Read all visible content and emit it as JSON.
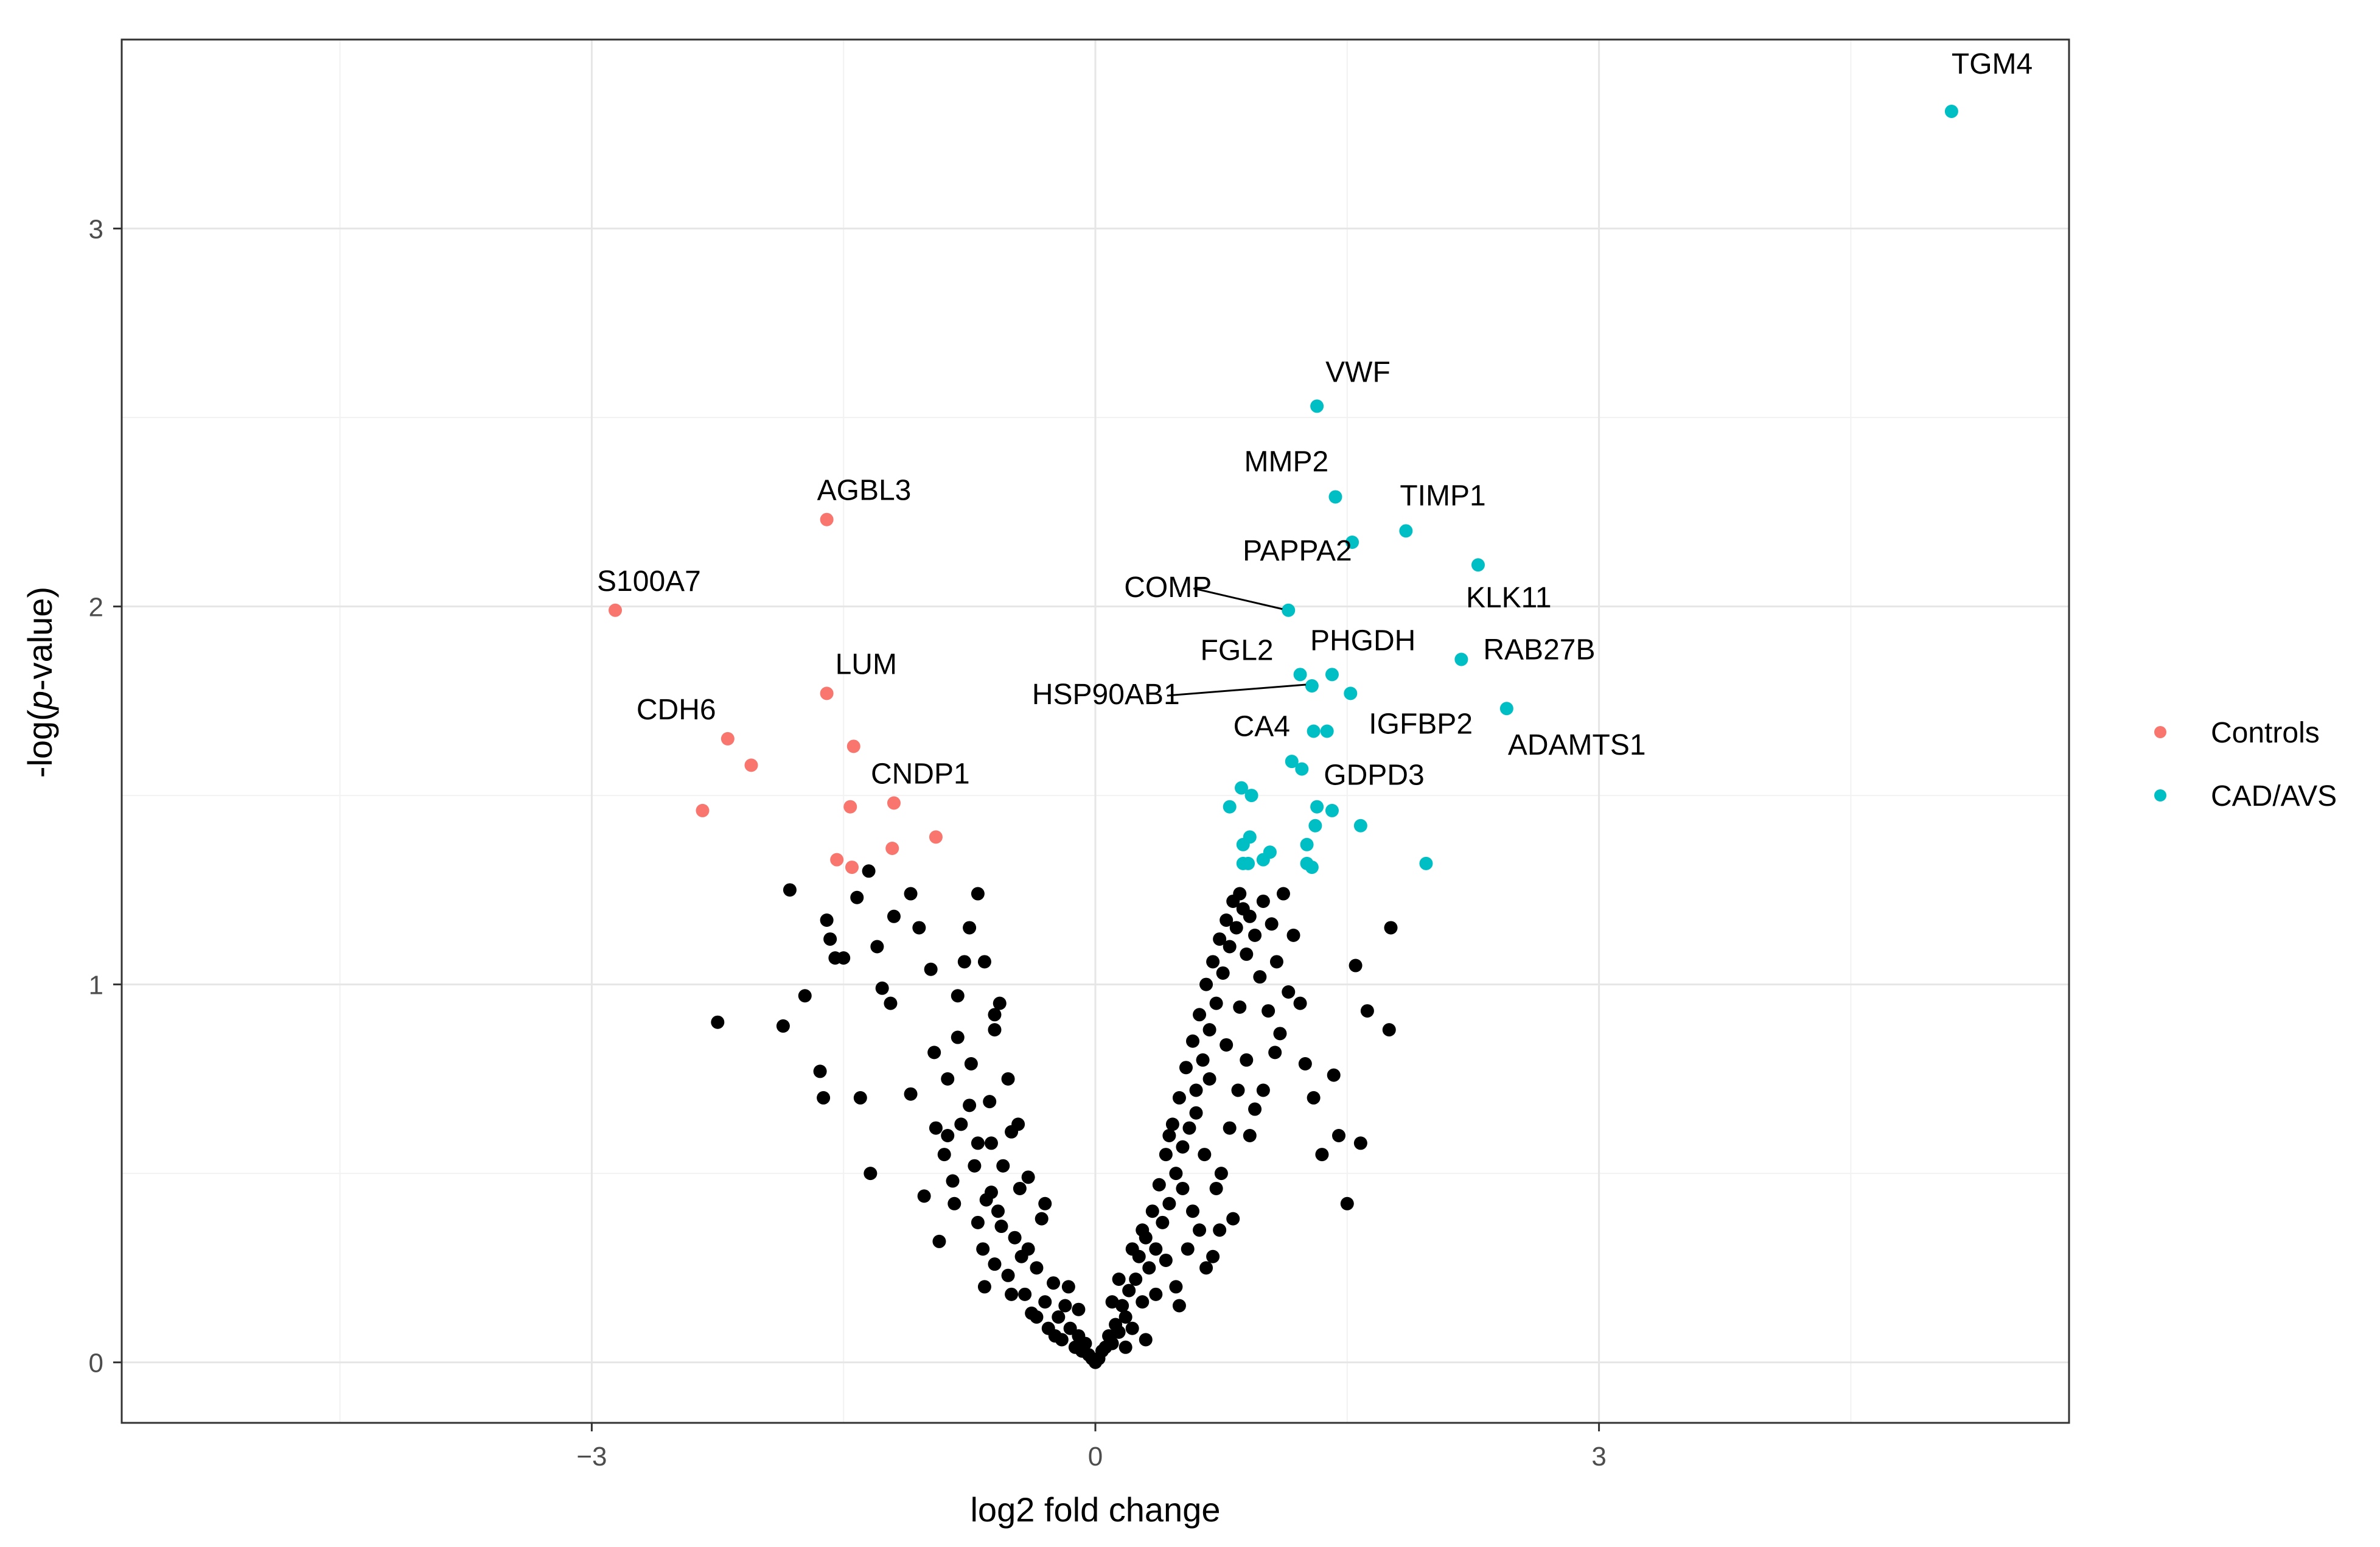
{
  "chart_data": {
    "type": "scatter",
    "xlabel": "log2 fold change",
    "ylabel": "-log(p-value)",
    "xlim": [
      -5.8,
      5.8
    ],
    "ylim": [
      -0.16,
      3.5
    ],
    "x_ticks": [
      -3,
      0,
      3
    ],
    "x_tick_labels": [
      "−3",
      "0",
      "3"
    ],
    "y_ticks": [
      0,
      1,
      2,
      3
    ],
    "y_tick_labels": [
      "0",
      "1",
      "2",
      "3"
    ],
    "grid": true,
    "legend_position": "right",
    "colors": {
      "Controls": "#F8766D",
      "CAD/AVS": "#00BFC4",
      "ns": "#000000",
      "grid_major": "#e6e6e6",
      "grid_minor": "#f2f2f2"
    },
    "series": [
      {
        "name": "Controls",
        "color": "#F8766D",
        "points": [
          [
            -2.86,
            1.99
          ],
          [
            -1.6,
            2.23
          ],
          [
            -1.6,
            1.77
          ],
          [
            -2.19,
            1.65
          ],
          [
            -2.05,
            1.58
          ],
          [
            -1.44,
            1.63
          ],
          [
            -2.34,
            1.46
          ],
          [
            -1.46,
            1.47
          ],
          [
            -1.2,
            1.48
          ],
          [
            -0.95,
            1.39
          ],
          [
            -1.54,
            1.33
          ],
          [
            -1.45,
            1.31
          ],
          [
            -1.21,
            1.36
          ]
        ]
      },
      {
        "name": "CAD/AVS",
        "color": "#00BFC4",
        "points": [
          [
            5.1,
            3.31
          ],
          [
            1.32,
            2.53
          ],
          [
            1.43,
            2.29
          ],
          [
            1.53,
            2.17
          ],
          [
            1.85,
            2.2
          ],
          [
            2.28,
            2.11
          ],
          [
            1.15,
            1.99
          ],
          [
            2.18,
            1.86
          ],
          [
            1.22,
            1.82
          ],
          [
            1.41,
            1.82
          ],
          [
            1.29,
            1.79
          ],
          [
            1.52,
            1.77
          ],
          [
            2.45,
            1.73
          ],
          [
            1.3,
            1.67
          ],
          [
            1.38,
            1.67
          ],
          [
            1.17,
            1.59
          ],
          [
            1.23,
            1.57
          ],
          [
            0.87,
            1.52
          ],
          [
            0.93,
            1.5
          ],
          [
            0.8,
            1.47
          ],
          [
            1.32,
            1.47
          ],
          [
            1.41,
            1.46
          ],
          [
            1.58,
            1.42
          ],
          [
            1.31,
            1.42
          ],
          [
            0.92,
            1.39
          ],
          [
            0.88,
            1.37
          ],
          [
            1.26,
            1.37
          ],
          [
            1.04,
            1.35
          ],
          [
            1.0,
            1.33
          ],
          [
            0.91,
            1.32
          ],
          [
            0.88,
            1.32
          ],
          [
            1.97,
            1.32
          ],
          [
            1.26,
            1.32
          ],
          [
            1.29,
            1.31
          ]
        ]
      }
    ],
    "ns_series": {
      "name": "",
      "color": "#000000",
      "points": [
        [
          -2.25,
          0.9
        ],
        [
          -1.82,
          1.25
        ],
        [
          -1.73,
          0.97
        ],
        [
          -1.86,
          0.89
        ],
        [
          -1.64,
          0.77
        ],
        [
          -1.62,
          0.7
        ],
        [
          -1.58,
          1.12
        ],
        [
          -1.55,
          1.07
        ],
        [
          -1.6,
          1.17
        ],
        [
          -1.5,
          1.07
        ],
        [
          -1.42,
          1.23
        ],
        [
          -1.35,
          1.3
        ],
        [
          -1.4,
          0.7
        ],
        [
          -1.34,
          0.5
        ],
        [
          -1.3,
          1.1
        ],
        [
          -1.27,
          0.99
        ],
        [
          -1.22,
          0.95
        ],
        [
          -1.2,
          1.18
        ],
        [
          -1.1,
          1.24
        ],
        [
          -1.05,
          1.15
        ],
        [
          -1.1,
          0.71
        ],
        [
          -0.98,
          1.04
        ],
        [
          -0.95,
          0.62
        ],
        [
          -1.02,
          0.44
        ],
        [
          -0.7,
          1.24
        ],
        [
          -0.6,
          0.88
        ],
        [
          -0.57,
          0.95
        ],
        [
          -0.63,
          0.69
        ],
        [
          -0.82,
          0.97
        ],
        [
          -0.78,
          1.06
        ],
        [
          -0.75,
          1.15
        ],
        [
          -0.88,
          0.75
        ],
        [
          -0.9,
          0.55
        ],
        [
          -0.85,
          0.48
        ],
        [
          -0.93,
          0.32
        ],
        [
          -0.8,
          0.63
        ],
        [
          -0.82,
          0.86
        ],
        [
          -0.74,
          0.79
        ],
        [
          -0.72,
          0.52
        ],
        [
          -0.7,
          0.37
        ],
        [
          -0.67,
          0.3
        ],
        [
          -0.65,
          0.43
        ],
        [
          -0.62,
          0.58
        ],
        [
          -0.6,
          0.26
        ],
        [
          -0.58,
          0.4
        ],
        [
          -0.55,
          0.52
        ],
        [
          -0.52,
          0.23
        ],
        [
          -0.5,
          0.61
        ],
        [
          -0.48,
          0.33
        ],
        [
          -0.45,
          0.46
        ],
        [
          -0.42,
          0.18
        ],
        [
          -0.4,
          0.3
        ],
        [
          -0.38,
          0.13
        ],
        [
          -0.35,
          0.25
        ],
        [
          -0.32,
          0.38
        ],
        [
          -0.3,
          0.16
        ],
        [
          -0.28,
          0.09
        ],
        [
          -0.25,
          0.21
        ],
        [
          -0.22,
          0.12
        ],
        [
          -0.2,
          0.06
        ],
        [
          -0.18,
          0.15
        ],
        [
          -0.15,
          0.09
        ],
        [
          -0.12,
          0.04
        ],
        [
          -0.1,
          0.07
        ],
        [
          -0.08,
          0.03
        ],
        [
          -0.06,
          0.05
        ],
        [
          -0.04,
          0.02
        ],
        [
          -0.02,
          0.01
        ],
        [
          0.0,
          0.0
        ],
        [
          0.02,
          0.01
        ],
        [
          0.04,
          0.03
        ],
        [
          0.06,
          0.04
        ],
        [
          0.08,
          0.07
        ],
        [
          0.1,
          0.05
        ],
        [
          0.12,
          0.1
        ],
        [
          0.14,
          0.08
        ],
        [
          0.16,
          0.15
        ],
        [
          0.18,
          0.12
        ],
        [
          0.2,
          0.19
        ],
        [
          0.22,
          0.09
        ],
        [
          0.24,
          0.22
        ],
        [
          0.26,
          0.28
        ],
        [
          0.28,
          0.16
        ],
        [
          0.3,
          0.33
        ],
        [
          0.32,
          0.25
        ],
        [
          0.34,
          0.4
        ],
        [
          0.36,
          0.3
        ],
        [
          0.38,
          0.47
        ],
        [
          0.4,
          0.37
        ],
        [
          0.42,
          0.55
        ],
        [
          0.44,
          0.42
        ],
        [
          0.46,
          0.63
        ],
        [
          0.48,
          0.5
        ],
        [
          0.5,
          0.7
        ],
        [
          0.52,
          0.57
        ],
        [
          0.54,
          0.78
        ],
        [
          0.56,
          0.62
        ],
        [
          0.58,
          0.85
        ],
        [
          0.6,
          0.72
        ],
        [
          0.62,
          0.92
        ],
        [
          0.64,
          0.8
        ],
        [
          0.66,
          1.0
        ],
        [
          0.68,
          0.88
        ],
        [
          0.7,
          1.06
        ],
        [
          0.72,
          0.95
        ],
        [
          0.74,
          1.12
        ],
        [
          0.76,
          1.03
        ],
        [
          0.78,
          1.17
        ],
        [
          0.8,
          1.1
        ],
        [
          0.82,
          1.22
        ],
        [
          0.84,
          1.15
        ],
        [
          0.86,
          1.24
        ],
        [
          0.88,
          1.2
        ],
        [
          0.9,
          1.08
        ],
        [
          0.92,
          1.18
        ],
        [
          0.95,
          1.13
        ],
        [
          0.98,
          1.02
        ],
        [
          1.0,
          1.22
        ],
        [
          1.03,
          0.93
        ],
        [
          1.05,
          1.16
        ],
        [
          1.08,
          1.06
        ],
        [
          1.1,
          0.87
        ],
        [
          1.12,
          1.24
        ],
        [
          1.15,
          0.98
        ],
        [
          1.18,
          1.13
        ],
        [
          1.22,
          0.95
        ],
        [
          1.25,
          0.79
        ],
        [
          1.3,
          0.7
        ],
        [
          1.35,
          0.55
        ],
        [
          1.45,
          0.6
        ],
        [
          1.5,
          0.42
        ],
        [
          1.42,
          0.76
        ],
        [
          1.55,
          1.05
        ],
        [
          1.58,
          0.58
        ],
        [
          1.62,
          0.93
        ],
        [
          1.75,
          0.88
        ],
        [
          1.76,
          1.15
        ],
        [
          0.55,
          0.3
        ],
        [
          0.62,
          0.35
        ],
        [
          0.48,
          0.2
        ],
        [
          0.7,
          0.28
        ],
        [
          0.65,
          0.55
        ],
        [
          0.58,
          0.4
        ],
        [
          0.75,
          0.5
        ],
        [
          0.8,
          0.62
        ],
        [
          0.85,
          0.72
        ],
        [
          0.9,
          0.8
        ],
        [
          0.95,
          0.67
        ],
        [
          0.72,
          0.46
        ],
        [
          0.66,
          0.25
        ],
        [
          0.5,
          0.15
        ],
        [
          0.42,
          0.27
        ],
        [
          0.36,
          0.18
        ],
        [
          -0.3,
          0.42
        ],
        [
          -0.35,
          0.12
        ],
        [
          -0.44,
          0.28
        ],
        [
          -0.5,
          0.18
        ],
        [
          -0.56,
          0.36
        ],
        [
          -0.62,
          0.45
        ],
        [
          -0.66,
          0.2
        ],
        [
          -0.7,
          0.58
        ],
        [
          -0.75,
          0.68
        ],
        [
          -0.84,
          0.42
        ],
        [
          -0.88,
          0.6
        ],
        [
          -0.96,
          0.82
        ],
        [
          -0.6,
          0.92
        ],
        [
          -0.66,
          1.06
        ],
        [
          -0.52,
          0.75
        ],
        [
          -0.46,
          0.63
        ],
        [
          -0.4,
          0.49
        ],
        [
          0.3,
          0.06
        ],
        [
          0.28,
          0.35
        ],
        [
          0.44,
          0.6
        ],
        [
          0.52,
          0.46
        ],
        [
          0.6,
          0.66
        ],
        [
          0.68,
          0.75
        ],
        [
          0.78,
          0.84
        ],
        [
          0.86,
          0.94
        ],
        [
          0.92,
          0.6
        ],
        [
          1.0,
          0.72
        ],
        [
          1.07,
          0.82
        ],
        [
          0.82,
          0.38
        ],
        [
          0.74,
          0.35
        ],
        [
          -0.24,
          0.07
        ],
        [
          -0.16,
          0.2
        ],
        [
          0.14,
          0.22
        ],
        [
          0.22,
          0.3
        ],
        [
          0.18,
          0.04
        ],
        [
          -0.1,
          0.14
        ],
        [
          0.1,
          0.16
        ]
      ]
    },
    "annotations": [
      {
        "label": "TGM4",
        "x": 5.1,
        "y": 3.31,
        "dx": 0,
        "dy": -62,
        "anchor": "start",
        "leader": false
      },
      {
        "label": "VWF",
        "x": 1.32,
        "y": 2.53,
        "dx": 14,
        "dy": -40,
        "anchor": "start",
        "leader": false
      },
      {
        "label": "MMP2",
        "x": 1.43,
        "y": 2.29,
        "dx": -150,
        "dy": -42,
        "anchor": "start",
        "leader": false
      },
      {
        "label": "TIMP1",
        "x": 1.85,
        "y": 2.2,
        "dx": -10,
        "dy": -42,
        "anchor": "start",
        "leader": false
      },
      {
        "label": "PAPPA2",
        "x": 1.53,
        "y": 2.17,
        "dx": -180,
        "dy": 30,
        "anchor": "start",
        "leader": false
      },
      {
        "label": "KLK11",
        "x": 2.28,
        "y": 2.11,
        "dx": -20,
        "dy": 70,
        "anchor": "start",
        "leader": false
      },
      {
        "label": "COMP",
        "x": 1.15,
        "y": 1.99,
        "dx": -270,
        "dy": -22,
        "anchor": "start",
        "leader": true
      },
      {
        "label": "FGL2",
        "x": 1.22,
        "y": 1.82,
        "dx": -164,
        "dy": -24,
        "anchor": "start",
        "leader": false
      },
      {
        "label": "PHGDH",
        "x": 1.41,
        "y": 1.82,
        "dx": -36,
        "dy": -40,
        "anchor": "start",
        "leader": false
      },
      {
        "label": "RAB27B",
        "x": 2.18,
        "y": 1.86,
        "dx": 36,
        "dy": 0,
        "anchor": "start",
        "leader": false
      },
      {
        "label": "HSP90AB1",
        "x": 1.29,
        "y": 1.79,
        "dx": -460,
        "dy": 30,
        "anchor": "start",
        "leader": true
      },
      {
        "label": "CA4",
        "x": 1.3,
        "y": 1.67,
        "dx": -132,
        "dy": 8,
        "anchor": "start",
        "leader": false
      },
      {
        "label": "IGFBP2",
        "x": 1.52,
        "y": 1.77,
        "dx": 30,
        "dy": 66,
        "anchor": "start",
        "leader": false
      },
      {
        "label": "ADAMTS1",
        "x": 2.45,
        "y": 1.73,
        "dx": 2,
        "dy": 76,
        "anchor": "start",
        "leader": false
      },
      {
        "label": "GDPD3",
        "x": 1.23,
        "y": 1.57,
        "dx": 36,
        "dy": 26,
        "anchor": "start",
        "leader": false
      },
      {
        "label": "S100A7",
        "x": -2.86,
        "y": 1.99,
        "dx": -30,
        "dy": -32,
        "anchor": "start",
        "leader": false
      },
      {
        "label": "AGBL3",
        "x": -1.6,
        "y": 2.23,
        "dx": -16,
        "dy": -32,
        "anchor": "start",
        "leader": false
      },
      {
        "label": "LUM",
        "x": -1.6,
        "y": 1.77,
        "dx": 14,
        "dy": -32,
        "anchor": "start",
        "leader": false
      },
      {
        "label": "CDH6",
        "x": -2.19,
        "y": 1.65,
        "dx": -150,
        "dy": -32,
        "anchor": "start",
        "leader": false
      },
      {
        "label": "CNDP1",
        "x": -1.2,
        "y": 1.48,
        "dx": -38,
        "dy": -32,
        "anchor": "start",
        "leader": false
      }
    ]
  },
  "legend": {
    "items": [
      {
        "label": "Controls",
        "color": "#F8766D"
      },
      {
        "label": "CAD/AVS",
        "color": "#00BFC4"
      }
    ]
  }
}
